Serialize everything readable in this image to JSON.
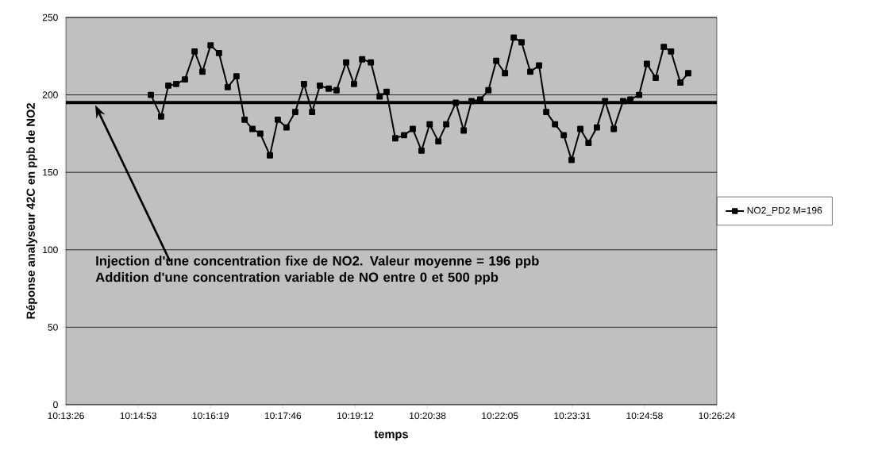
{
  "chart_data": {
    "type": "line",
    "xlabel": "temps",
    "ylabel": "Réponse analyseur 42C en ppb de NO2",
    "xlim": [
      10.224,
      10.44
    ],
    "xticks": [
      {
        "value": 10.224,
        "label": "10:13:26"
      },
      {
        "value": 10.248,
        "label": "10:14:53"
      },
      {
        "value": 10.272,
        "label": "10:16:19"
      },
      {
        "value": 10.296,
        "label": "10:17:46"
      },
      {
        "value": 10.32,
        "label": "10:19:12"
      },
      {
        "value": 10.344,
        "label": "10:20:38"
      },
      {
        "value": 10.368,
        "label": "10:22:05"
      },
      {
        "value": 10.392,
        "label": "10:23:31"
      },
      {
        "value": 10.416,
        "label": "10:24:58"
      },
      {
        "value": 10.44,
        "label": "10:26:24"
      }
    ],
    "ylim": [
      0,
      250
    ],
    "yticks": [
      0,
      50,
      100,
      150,
      200,
      250
    ],
    "grid": "y",
    "legend": "right",
    "marker": "square",
    "line_style": "solid",
    "ref_lines": [
      {
        "axis": "y",
        "value": 195,
        "color": "#000000"
      }
    ],
    "annotations": [
      "Injection d'une concentration fixe de NO2. Valeur moyenne = 196 ppb",
      "Addition d'une concentration variable de NO entre 0 et 500 ppb"
    ],
    "series": [
      {
        "name": "NO2_PD2 M=196",
        "color": "#000000",
        "x": [
          10.2522,
          10.2556,
          10.258,
          10.2606,
          10.2635,
          10.2667,
          10.2693,
          10.272,
          10.2748,
          10.2777,
          10.2806,
          10.2833,
          10.2859,
          10.2885,
          10.2917,
          10.2943,
          10.2972,
          10.3001,
          10.303,
          10.3057,
          10.3083,
          10.3112,
          10.3138,
          10.317,
          10.3196,
          10.3223,
          10.3252,
          10.3281,
          10.3304,
          10.3333,
          10.3362,
          10.3391,
          10.342,
          10.3447,
          10.3476,
          10.3502,
          10.3534,
          10.356,
          10.3586,
          10.3615,
          10.3642,
          10.3668,
          10.3697,
          10.3726,
          10.3752,
          10.3781,
          10.381,
          10.3834,
          10.3863,
          10.3892,
          10.3918,
          10.3947,
          10.3974,
          10.4002,
          10.4029,
          10.4058,
          10.4089,
          10.4113,
          10.4142,
          10.4168,
          10.4197,
          10.4224,
          10.4248,
          10.4279,
          10.4305
        ],
        "values": [
          200,
          186,
          206,
          207,
          210,
          228,
          215,
          232,
          227,
          205,
          212,
          184,
          178,
          175,
          161,
          184,
          179,
          189,
          207,
          189,
          206,
          204,
          203,
          221,
          207,
          223,
          221,
          199,
          202,
          172,
          174,
          178,
          164,
          181,
          170,
          181,
          195,
          177,
          196,
          197,
          203,
          222,
          214,
          237,
          234,
          215,
          219,
          189,
          181,
          174,
          158,
          178,
          169,
          179,
          196,
          178,
          196,
          197,
          200,
          220,
          211,
          231,
          228,
          208,
          214
        ]
      }
    ]
  }
}
